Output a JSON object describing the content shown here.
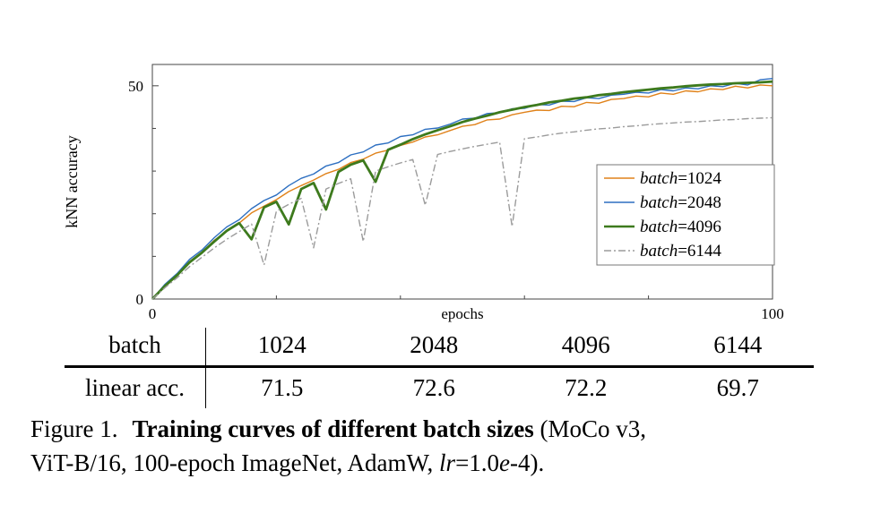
{
  "table": {
    "row1_label": "batch",
    "row2_label": "linear acc.",
    "batch_values": [
      "1024",
      "2048",
      "4096",
      "6144"
    ],
    "acc_values": [
      "71.5",
      "72.6",
      "72.2",
      "69.7"
    ]
  },
  "figure": {
    "caption": {
      "prefix": "Figure 1.",
      "bold": "Training curves of different batch sizes",
      "tail_line1": "(MoCo v3,",
      "tail_line2": "ViT-B/16, 100-epoch ImageNet, AdamW, ",
      "lr_italic": "lr",
      "eq": "=1.0",
      "e_italic": "e",
      "tail_end": "-4)."
    }
  },
  "chart_data": {
    "type": "line",
    "title": "",
    "xlabel": "epochs",
    "ylabel": "kNN accuracy",
    "xlim": [
      0,
      100
    ],
    "ylim": [
      0,
      55
    ],
    "x_ticks_labeled": [
      0,
      100
    ],
    "x_ticks_minor": [
      20,
      40,
      60,
      80
    ],
    "y_ticks_labeled": [
      0,
      50
    ],
    "y_ticks_minor": [
      10,
      20,
      30,
      40
    ],
    "grid": false,
    "legend_position": "center-right",
    "axis_color": "#444444",
    "legend_border_color": "#777777",
    "x": [
      0,
      2,
      4,
      6,
      8,
      10,
      12,
      14,
      16,
      18,
      20,
      22,
      24,
      26,
      28,
      30,
      32,
      34,
      36,
      38,
      40,
      42,
      44,
      46,
      48,
      50,
      52,
      54,
      56,
      58,
      60,
      62,
      64,
      66,
      68,
      70,
      72,
      74,
      76,
      78,
      80,
      82,
      84,
      86,
      88,
      90,
      92,
      94,
      96,
      98,
      100
    ],
    "series": [
      {
        "label": "batch=1024",
        "name_italic": "batch",
        "name_rest": "=1024",
        "color": "#e0821a",
        "width": 1.4,
        "dash": null,
        "values": [
          0,
          3.0,
          5.6,
          8.8,
          11.0,
          13.8,
          15.9,
          17.8,
          20.2,
          21.8,
          23.3,
          25.2,
          26.6,
          27.9,
          29.4,
          30.4,
          32.0,
          32.8,
          34.2,
          34.9,
          36.0,
          36.8,
          38.0,
          38.5,
          39.5,
          40.5,
          40.9,
          42.0,
          42.2,
          43.2,
          43.8,
          44.3,
          44.2,
          45.2,
          45.1,
          46.1,
          45.9,
          46.8,
          47.0,
          47.6,
          47.4,
          48.3,
          48.0,
          48.8,
          48.6,
          49.3,
          49.1,
          49.9,
          49.5,
          50.2,
          50.0
        ]
      },
      {
        "label": "batch=2048",
        "name_italic": "batch",
        "name_rest": "=2048",
        "color": "#2d6fc1",
        "width": 1.4,
        "dash": null,
        "values": [
          0,
          3.4,
          6.0,
          9.3,
          11.5,
          14.4,
          16.9,
          18.6,
          21.2,
          23.1,
          24.4,
          26.6,
          28.3,
          29.3,
          31.2,
          32.0,
          33.8,
          34.5,
          36.1,
          36.6,
          38.1,
          38.5,
          39.8,
          40.1,
          41.0,
          42.2,
          42.4,
          43.5,
          43.7,
          44.6,
          44.7,
          45.6,
          45.5,
          46.4,
          46.3,
          47.2,
          47.0,
          47.8,
          48.0,
          48.5,
          48.3,
          49.1,
          48.8,
          49.5,
          49.3,
          50.0,
          49.8,
          50.6,
          50.2,
          51.4,
          51.7
        ]
      },
      {
        "label": "batch=4096",
        "name_italic": "batch",
        "name_rest": "=4096",
        "color": "#3d7a1d",
        "width": 2.8,
        "dash": null,
        "values": [
          0,
          3.0,
          5.6,
          8.6,
          10.9,
          13.5,
          16.0,
          17.8,
          14.0,
          21.5,
          22.8,
          17.5,
          25.8,
          27.2,
          21.0,
          29.8,
          31.5,
          32.5,
          27.5,
          35.0,
          36.2,
          37.5,
          38.6,
          39.6,
          40.5,
          41.5,
          42.3,
          43.0,
          43.8,
          44.4,
          45.0,
          45.5,
          46.1,
          46.5,
          47.0,
          47.3,
          47.8,
          48.1,
          48.5,
          48.8,
          49.1,
          49.4,
          49.6,
          49.9,
          50.1,
          50.3,
          50.4,
          50.6,
          50.7,
          50.8,
          51.0
        ]
      },
      {
        "label": "batch=6144",
        "name_italic": "batch",
        "name_rest": "=6144",
        "color": "#9b9b9b",
        "width": 1.4,
        "dash": "8 3 2 3",
        "values": [
          0,
          2.6,
          5.0,
          7.6,
          9.8,
          12.0,
          14.0,
          15.8,
          17.6,
          8.0,
          20.6,
          22.2,
          23.6,
          12.0,
          25.8,
          27.1,
          28.2,
          13.5,
          30.0,
          31.0,
          31.9,
          32.7,
          22.0,
          33.9,
          34.6,
          35.2,
          35.8,
          36.3,
          36.8,
          17.0,
          37.6,
          38.0,
          38.5,
          38.9,
          39.2,
          39.6,
          39.9,
          40.1,
          40.4,
          40.6,
          40.9,
          41.1,
          41.3,
          41.5,
          41.6,
          41.8,
          42.0,
          42.1,
          42.3,
          42.4,
          42.5
        ]
      }
    ]
  }
}
